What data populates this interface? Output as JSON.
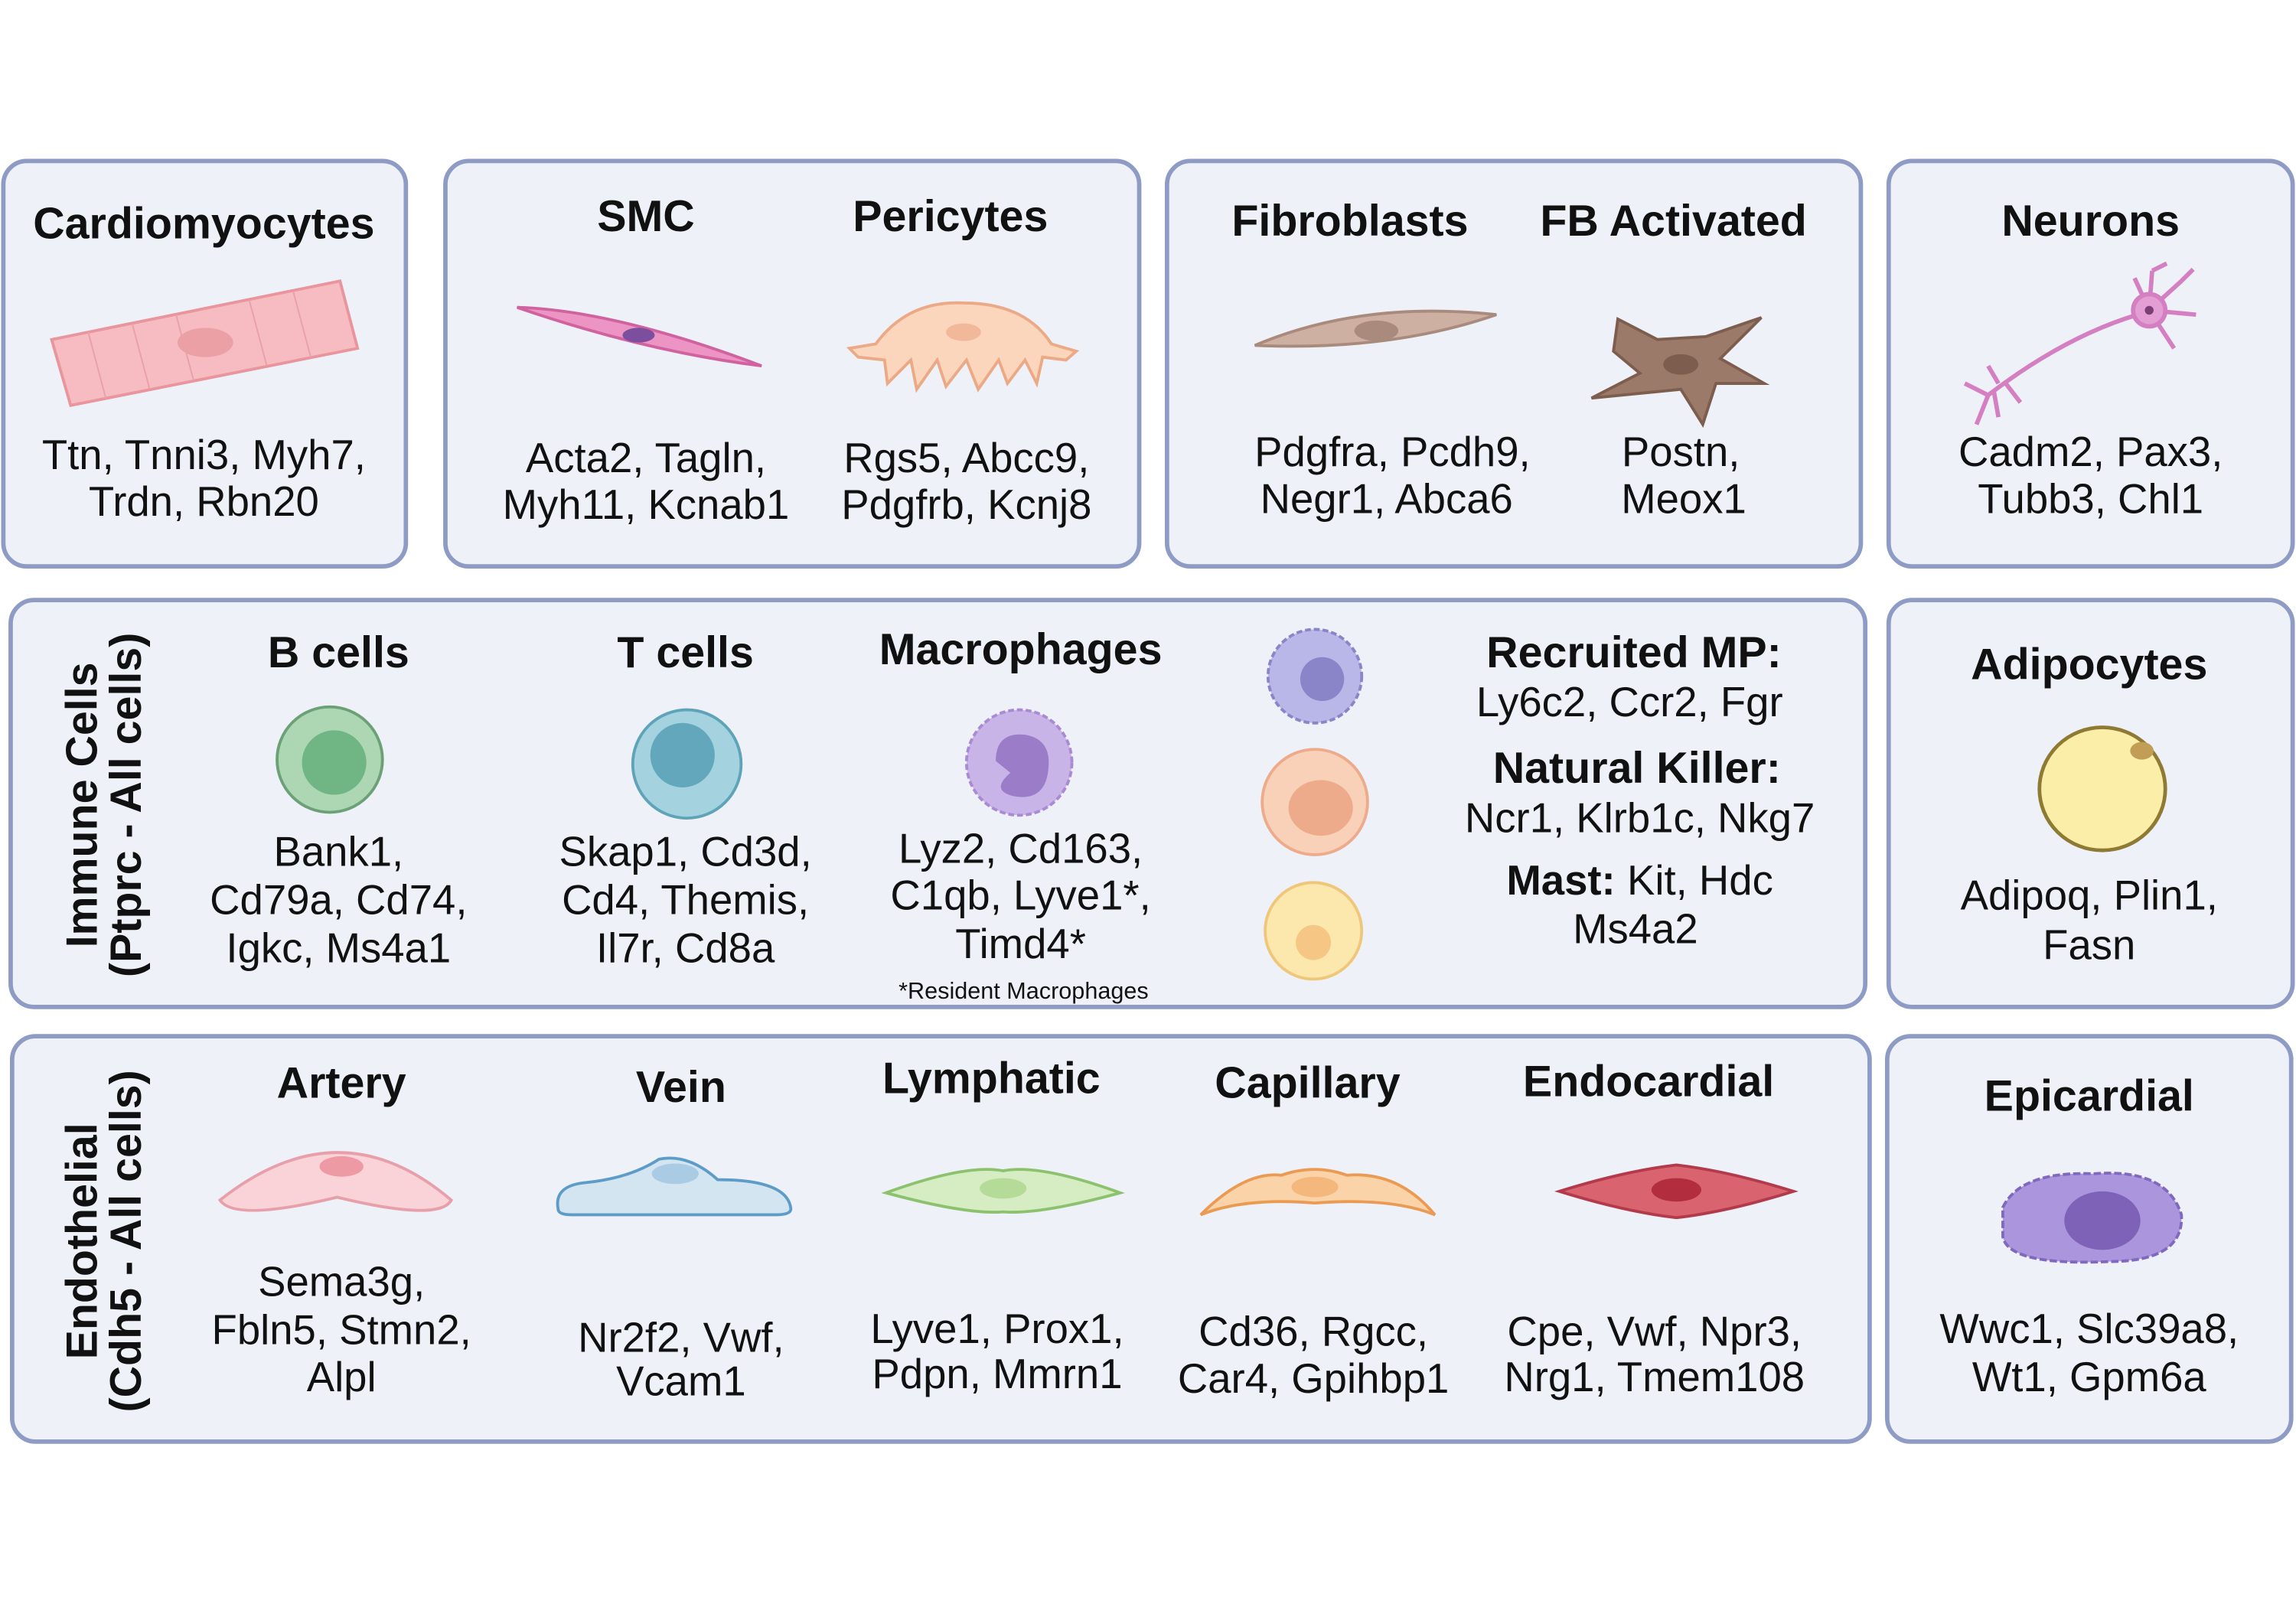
{
  "cardiomyocytes": {
    "title": "Cardiomyocytes",
    "markers": [
      "Ttn, Tnni3, Myh7,",
      "Trdn, Rbn20"
    ]
  },
  "mural": [
    {
      "title": "SMC",
      "markers": [
        "Acta2, Tagln,",
        "Myh11, Kcnab1"
      ]
    },
    {
      "title": "Pericytes",
      "markers": [
        "Rgs5, Abcc9,",
        "Pdgfrb, Kcnj8"
      ]
    }
  ],
  "fibroblasts": [
    {
      "title": "Fibroblasts",
      "markers": [
        "Pdgfra, Pcdh9,",
        "Negr1, Abca6"
      ]
    },
    {
      "title": "FB Activated",
      "markers": [
        "Postn,",
        "Meox1"
      ]
    }
  ],
  "neurons": {
    "title": "Neurons",
    "markers": [
      "Cadm2, Pax3,",
      "Tubb3, Chl1"
    ]
  },
  "immune": {
    "label": [
      "Immune Cells",
      "(Ptprc - All cells)"
    ],
    "cells": [
      {
        "title": "B cells",
        "markers": [
          "Bank1,",
          "Cd79a, Cd74,",
          "Igkc, Ms4a1"
        ]
      },
      {
        "title": "T cells",
        "markers": [
          "Skap1, Cd3d,",
          "Cd4, Themis,",
          "Il7r, Cd8a"
        ]
      },
      {
        "title": "Macrophages",
        "markers": [
          "Lyz2, Cd163,",
          "C1qb, Lyve1*,",
          "Timd4*"
        ]
      }
    ],
    "footnote": "*Resident Macrophages",
    "others": [
      {
        "name": "Recruited MP:",
        "markers": [
          "Ly6c2, Ccr2, Fgr"
        ]
      },
      {
        "name": "Natural Killer:",
        "markers": [
          "Ncr1, Klrb1c, Nkg7"
        ]
      },
      {
        "name": "Mast:",
        "markers": [
          "Kit, Hdc",
          "Ms4a2"
        ]
      }
    ]
  },
  "adipocytes": {
    "title": "Adipocytes",
    "markers": [
      "Adipoq, Plin1,",
      "Fasn"
    ]
  },
  "endothelial": {
    "label": [
      "Endothelial",
      "(Cdh5 - All cells)"
    ],
    "cells": [
      {
        "title": "Artery",
        "markers": [
          "Sema3g,",
          "Fbln5, Stmn2,",
          "Alpl"
        ]
      },
      {
        "title": "Vein",
        "markers": [
          "Nr2f2, Vwf,",
          "Vcam1"
        ]
      },
      {
        "title": "Lymphatic",
        "markers": [
          "Lyve1, Prox1,",
          "Pdpn, Mmrn1"
        ]
      },
      {
        "title": "Capillary",
        "markers": [
          "Cd36, Rgcc,",
          "Car4, Gpihbp1"
        ]
      },
      {
        "title": "Endocardial",
        "markers": [
          "Cpe, Vwf, Npr3,",
          "Nrg1, Tmem108"
        ]
      }
    ]
  },
  "epicardial": {
    "title": "Epicardial",
    "markers": [
      "Wwc1, Slc39a8,",
      "Wt1, Gpm6a"
    ]
  }
}
